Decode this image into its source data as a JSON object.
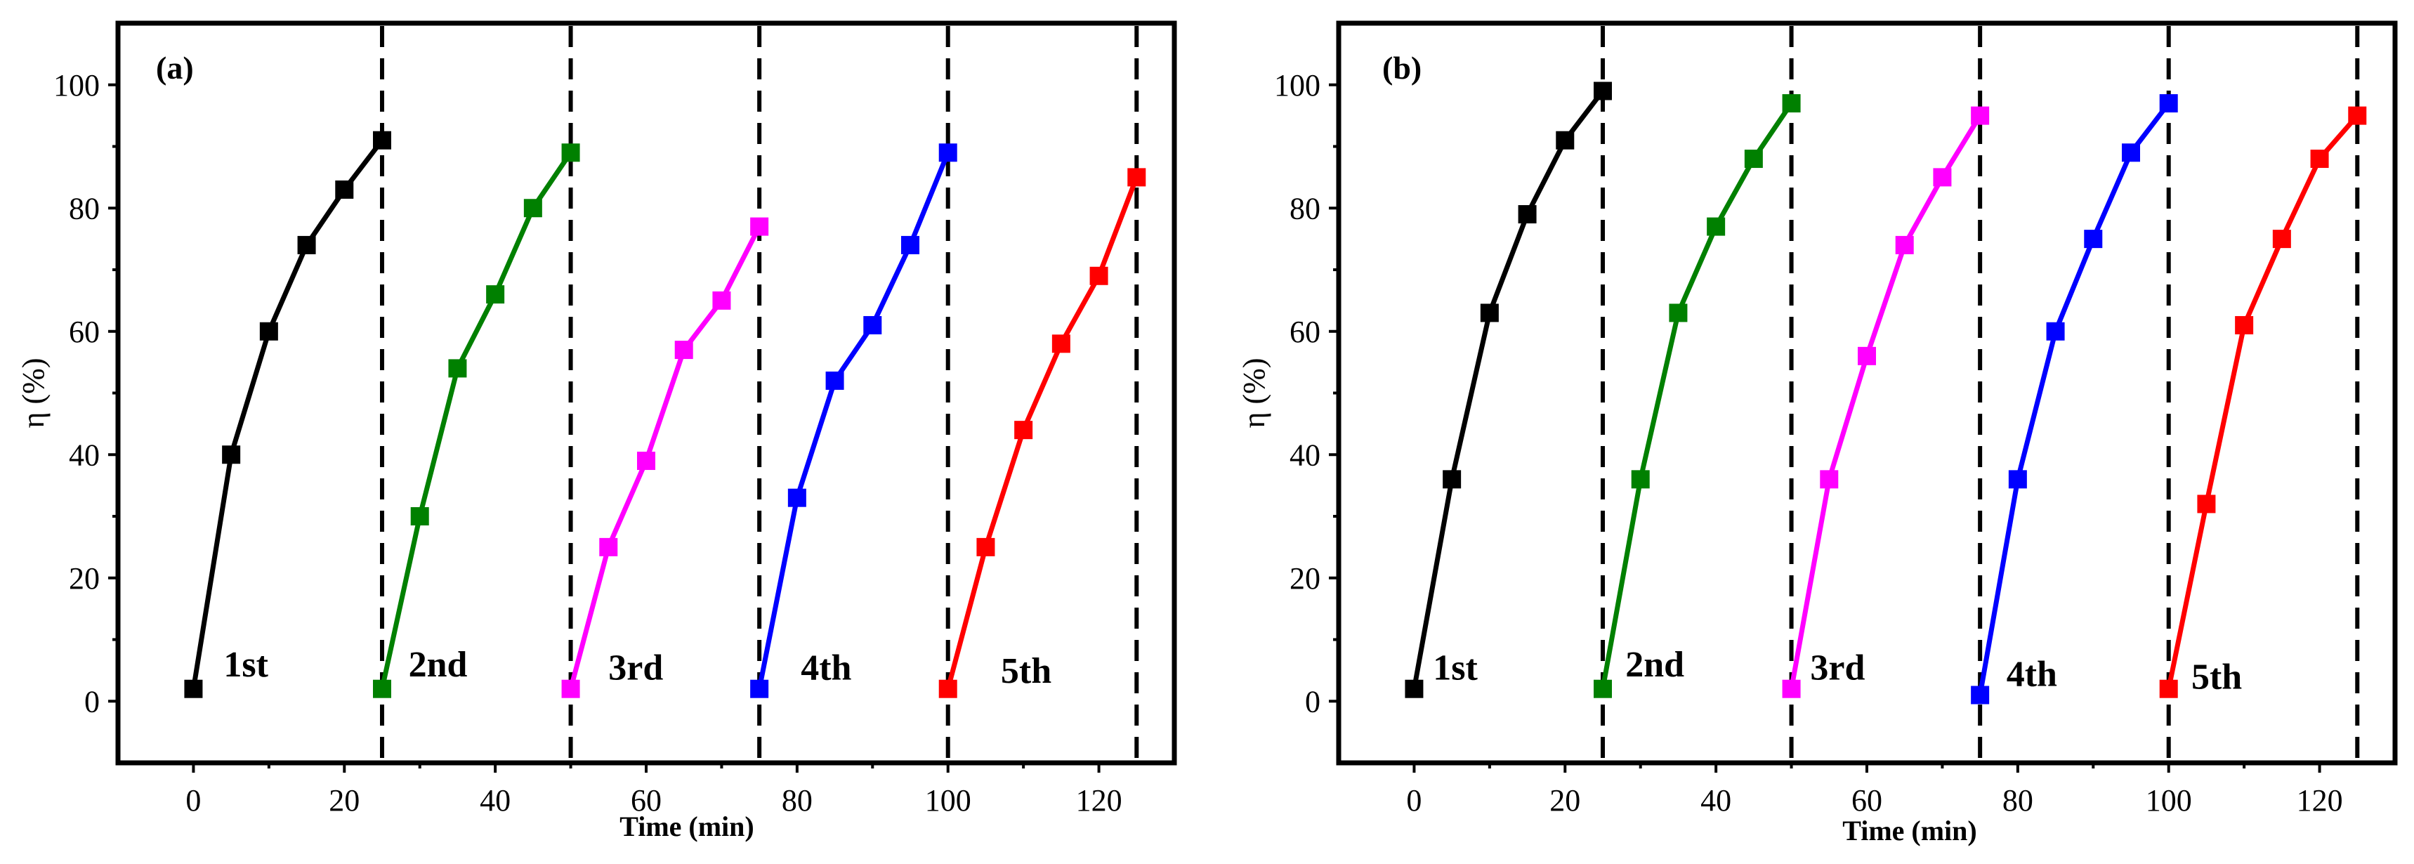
{
  "chart_data": [
    {
      "type": "line",
      "panel_label": "(a)",
      "xlabel": "Time (min)",
      "ylabel": "η (%)",
      "xlim": [
        -10,
        130
      ],
      "ylim": [
        -10,
        110
      ],
      "xticks": [
        0,
        20,
        40,
        60,
        80,
        100,
        120
      ],
      "yticks": [
        0,
        20,
        40,
        60,
        80,
        100
      ],
      "xtick_labels": [
        "0",
        "20",
        "40",
        "60",
        "80",
        "100",
        "120"
      ],
      "ytick_labels": [
        "0",
        "20",
        "40",
        "60",
        "80",
        "100"
      ],
      "dividers": [
        25,
        50,
        75,
        100,
        125
      ],
      "series": [
        {
          "name": "1st",
          "color": "#000000",
          "x": [
            0,
            5,
            10,
            15,
            20,
            25
          ],
          "y": [
            2,
            40,
            60,
            74,
            83,
            91
          ]
        },
        {
          "name": "2nd",
          "color": "#008000",
          "x": [
            25,
            30,
            35,
            40,
            45,
            50
          ],
          "y": [
            2,
            30,
            54,
            66,
            80,
            89
          ]
        },
        {
          "name": "3rd",
          "color": "#ff00ff",
          "x": [
            50,
            55,
            60,
            65,
            70,
            75
          ],
          "y": [
            2,
            25,
            39,
            57,
            65,
            77
          ]
        },
        {
          "name": "4th",
          "color": "#0000ff",
          "x": [
            75,
            80,
            85,
            90,
            95,
            100
          ],
          "y": [
            2,
            33,
            52,
            61,
            74,
            89
          ]
        },
        {
          "name": "5th",
          "color": "#ff0000",
          "x": [
            100,
            105,
            110,
            115,
            120,
            125
          ],
          "y": [
            2,
            25,
            44,
            58,
            69,
            85
          ]
        }
      ]
    },
    {
      "type": "line",
      "panel_label": "(b)",
      "xlabel": "Time (min)",
      "ylabel": "η (%)",
      "xlim": [
        -10,
        130
      ],
      "ylim": [
        -10,
        110
      ],
      "xticks": [
        0,
        20,
        40,
        60,
        80,
        100,
        120
      ],
      "yticks": [
        0,
        20,
        40,
        60,
        80,
        100
      ],
      "xtick_labels": [
        "0",
        "20",
        "40",
        "60",
        "80",
        "100",
        "120"
      ],
      "ytick_labels": [
        "0",
        "20",
        "40",
        "60",
        "80",
        "100"
      ],
      "dividers": [
        25,
        50,
        75,
        100,
        125
      ],
      "series": [
        {
          "name": "1st",
          "color": "#000000",
          "x": [
            0,
            5,
            10,
            15,
            20,
            25
          ],
          "y": [
            2,
            36,
            63,
            79,
            91,
            99
          ]
        },
        {
          "name": "2nd",
          "color": "#008000",
          "x": [
            25,
            30,
            35,
            40,
            45,
            50
          ],
          "y": [
            2,
            36,
            63,
            77,
            88,
            97
          ]
        },
        {
          "name": "3rd",
          "color": "#ff00ff",
          "x": [
            50,
            55,
            60,
            65,
            70,
            75
          ],
          "y": [
            2,
            36,
            56,
            74,
            85,
            95
          ]
        },
        {
          "name": "4th",
          "color": "#0000ff",
          "x": [
            75,
            80,
            85,
            90,
            95,
            100
          ],
          "y": [
            1,
            36,
            60,
            75,
            89,
            97
          ]
        },
        {
          "name": "5th",
          "color": "#ff0000",
          "x": [
            100,
            105,
            110,
            115,
            120,
            125
          ],
          "y": [
            2,
            32,
            61,
            75,
            88,
            95
          ]
        }
      ]
    }
  ]
}
